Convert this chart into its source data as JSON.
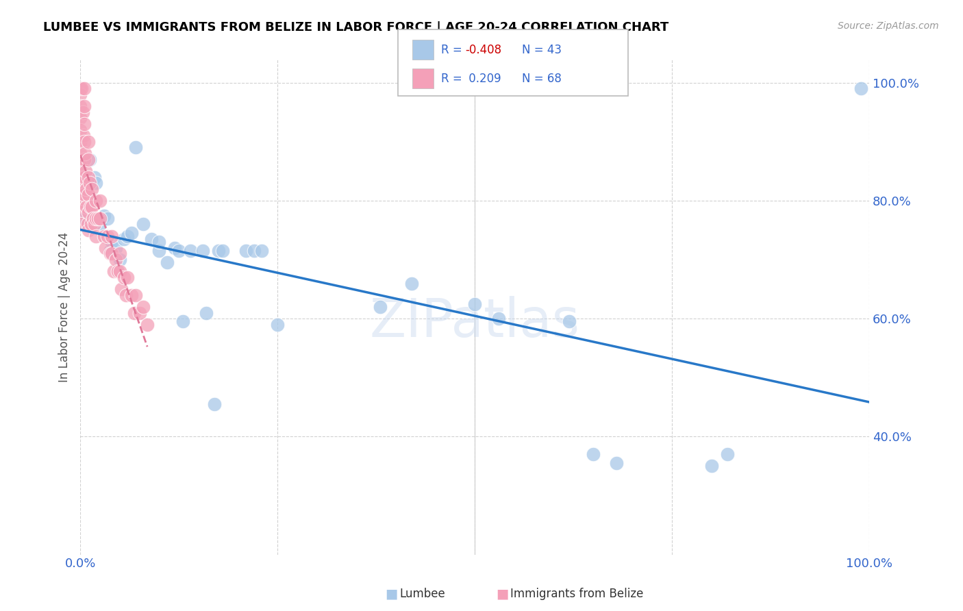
{
  "title": "LUMBEE VS IMMIGRANTS FROM BELIZE IN LABOR FORCE | AGE 20-24 CORRELATION CHART",
  "source": "Source: ZipAtlas.com",
  "ylabel": "In Labor Force | Age 20-24",
  "xlim": [
    0.0,
    1.0
  ],
  "ylim": [
    0.2,
    1.04
  ],
  "y_ticks": [
    0.4,
    0.6,
    0.8,
    1.0
  ],
  "blue_color": "#a8c8e8",
  "pink_color": "#f4a0b8",
  "blue_line_color": "#2878c8",
  "pink_line_color": "#e07898",
  "watermark": "ZIPatlas",
  "lumbee_x": [
    0.005,
    0.012,
    0.018,
    0.02,
    0.025,
    0.03,
    0.035,
    0.038,
    0.04,
    0.045,
    0.05,
    0.055,
    0.06,
    0.065,
    0.07,
    0.08,
    0.09,
    0.1,
    0.1,
    0.11,
    0.12,
    0.125,
    0.13,
    0.14,
    0.155,
    0.16,
    0.17,
    0.175,
    0.18,
    0.21,
    0.22,
    0.23,
    0.25,
    0.38,
    0.42,
    0.5,
    0.53,
    0.62,
    0.65,
    0.68,
    0.8,
    0.82,
    0.99
  ],
  "lumbee_y": [
    0.77,
    0.87,
    0.84,
    0.83,
    0.76,
    0.775,
    0.77,
    0.715,
    0.73,
    0.72,
    0.7,
    0.735,
    0.74,
    0.745,
    0.89,
    0.76,
    0.735,
    0.715,
    0.73,
    0.695,
    0.72,
    0.715,
    0.595,
    0.715,
    0.715,
    0.61,
    0.455,
    0.715,
    0.715,
    0.715,
    0.715,
    0.715,
    0.59,
    0.62,
    0.66,
    0.625,
    0.6,
    0.595,
    0.37,
    0.355,
    0.35,
    0.37,
    0.99
  ],
  "belize_x": [
    0.0,
    0.0,
    0.0,
    0.0,
    0.0,
    0.0,
    0.0,
    0.0,
    0.0,
    0.0,
    0.0,
    0.0,
    0.0,
    0.002,
    0.003,
    0.004,
    0.005,
    0.005,
    0.005,
    0.005,
    0.005,
    0.005,
    0.005,
    0.006,
    0.007,
    0.008,
    0.008,
    0.009,
    0.01,
    0.01,
    0.01,
    0.01,
    0.01,
    0.01,
    0.012,
    0.013,
    0.014,
    0.015,
    0.015,
    0.016,
    0.018,
    0.02,
    0.02,
    0.02,
    0.022,
    0.025,
    0.025,
    0.03,
    0.032,
    0.035,
    0.038,
    0.04,
    0.04,
    0.042,
    0.045,
    0.048,
    0.05,
    0.05,
    0.052,
    0.055,
    0.058,
    0.06,
    0.065,
    0.068,
    0.07,
    0.075,
    0.08,
    0.085
  ],
  "belize_y": [
    0.99,
    0.98,
    0.96,
    0.94,
    0.92,
    0.9,
    0.88,
    0.86,
    0.84,
    0.82,
    0.8,
    0.78,
    0.76,
    0.99,
    0.95,
    0.91,
    0.99,
    0.96,
    0.93,
    0.9,
    0.87,
    0.84,
    0.81,
    0.88,
    0.85,
    0.82,
    0.79,
    0.76,
    0.9,
    0.87,
    0.84,
    0.81,
    0.78,
    0.75,
    0.83,
    0.79,
    0.76,
    0.82,
    0.79,
    0.77,
    0.76,
    0.8,
    0.77,
    0.74,
    0.77,
    0.8,
    0.77,
    0.74,
    0.72,
    0.74,
    0.71,
    0.74,
    0.71,
    0.68,
    0.7,
    0.68,
    0.71,
    0.68,
    0.65,
    0.67,
    0.64,
    0.67,
    0.64,
    0.61,
    0.64,
    0.61,
    0.62,
    0.59
  ]
}
